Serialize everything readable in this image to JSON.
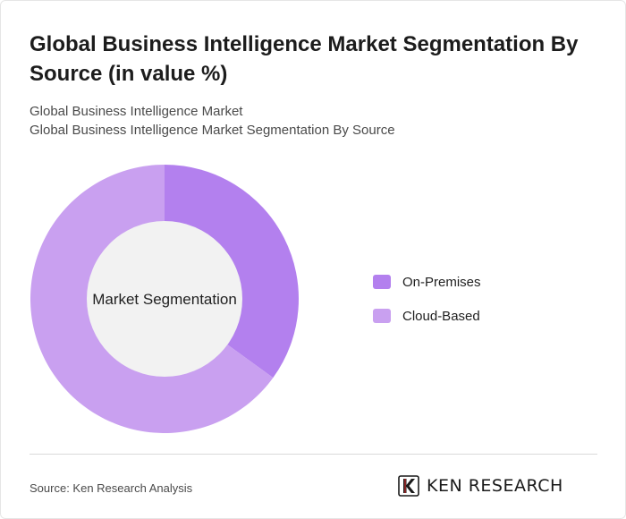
{
  "header": {
    "title": "Global Business Intelligence Market Segmentation By Source (in value %)",
    "subtitle_1": "Global Business Intelligence Market",
    "subtitle_2": "Global Business Intelligence Market Segmentation By Source"
  },
  "chart_data": {
    "type": "pie",
    "style": "donut",
    "center_label": "Market Segmentation",
    "legend_position": "right",
    "categories": [
      "On-Premises",
      "Cloud-Based"
    ],
    "values": [
      35,
      65
    ],
    "colors": [
      "#b380ee",
      "#c9a0f0"
    ]
  },
  "footer": {
    "source": "Source: Ken Research Analysis",
    "brand": "KEN RESEARCH"
  },
  "icons": {
    "logo": "ken-research-logo-icon"
  }
}
